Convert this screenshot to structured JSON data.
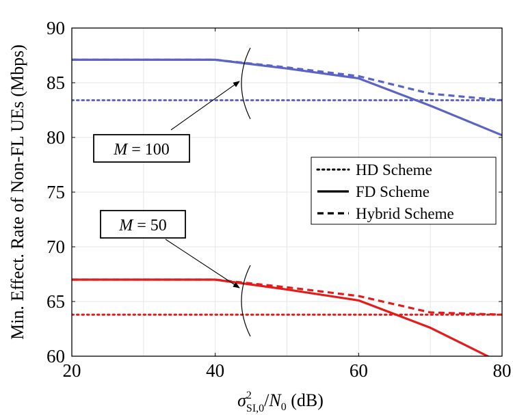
{
  "chart_data": {
    "type": "line",
    "xlabel": "σ²SI,0/N0 (dB)",
    "ylabel": "Min. Effect. Rate of Non-FL UEs (Mbps)",
    "xlim": [
      20,
      80
    ],
    "ylim": [
      60,
      90
    ],
    "xticks": [
      20,
      40,
      60,
      80
    ],
    "yticks": [
      60,
      65,
      70,
      75,
      80,
      85,
      90
    ],
    "grid": true,
    "legend": {
      "placement": "right",
      "entries": [
        {
          "label": "HD Scheme",
          "style": "dotted"
        },
        {
          "label": "FD Scheme",
          "style": "solid"
        },
        {
          "label": "Hybrid Scheme",
          "style": "dashed"
        }
      ]
    },
    "annotations": [
      {
        "text_italic": "M",
        "text_rest": " = 100",
        "group": "M100"
      },
      {
        "text_italic": "M",
        "text_rest": " = 50",
        "group": "M50"
      }
    ],
    "series": [
      {
        "group": "M100",
        "scheme": "HD Scheme",
        "style": "dotted",
        "color": "#5b63c4",
        "x": [
          20,
          30,
          40,
          50,
          60,
          70,
          80
        ],
        "y": [
          83.4,
          83.4,
          83.4,
          83.4,
          83.4,
          83.4,
          83.4
        ]
      },
      {
        "group": "M100",
        "scheme": "FD Scheme",
        "style": "solid",
        "color": "#5b63c4",
        "x": [
          20,
          30,
          40,
          50,
          60,
          70,
          80
        ],
        "y": [
          87.1,
          87.1,
          87.1,
          86.3,
          85.4,
          82.9,
          80.2
        ]
      },
      {
        "group": "M100",
        "scheme": "Hybrid Scheme",
        "style": "dashed",
        "color": "#5b63c4",
        "x": [
          20,
          30,
          40,
          50,
          60,
          70,
          80
        ],
        "y": [
          87.1,
          87.1,
          87.1,
          86.4,
          85.6,
          84.0,
          83.4
        ]
      },
      {
        "group": "M50",
        "scheme": "HD Scheme",
        "style": "dotted",
        "color": "#e51a1a",
        "x": [
          20,
          30,
          40,
          50,
          60,
          70,
          80
        ],
        "y": [
          63.8,
          63.8,
          63.8,
          63.8,
          63.8,
          63.8,
          63.8
        ]
      },
      {
        "group": "M50",
        "scheme": "FD Scheme",
        "style": "solid",
        "color": "#e51a1a",
        "x": [
          20,
          30,
          40,
          50,
          60,
          70,
          78,
          80
        ],
        "y": [
          67.0,
          67.0,
          67.0,
          66.1,
          65.1,
          62.6,
          60.0,
          59.4
        ]
      },
      {
        "group": "M50",
        "scheme": "Hybrid Scheme",
        "style": "dashed",
        "color": "#e51a1a",
        "x": [
          20,
          30,
          40,
          50,
          60,
          70,
          80
        ],
        "y": [
          67.0,
          67.0,
          67.0,
          66.3,
          65.5,
          64.0,
          63.8
        ]
      }
    ]
  }
}
